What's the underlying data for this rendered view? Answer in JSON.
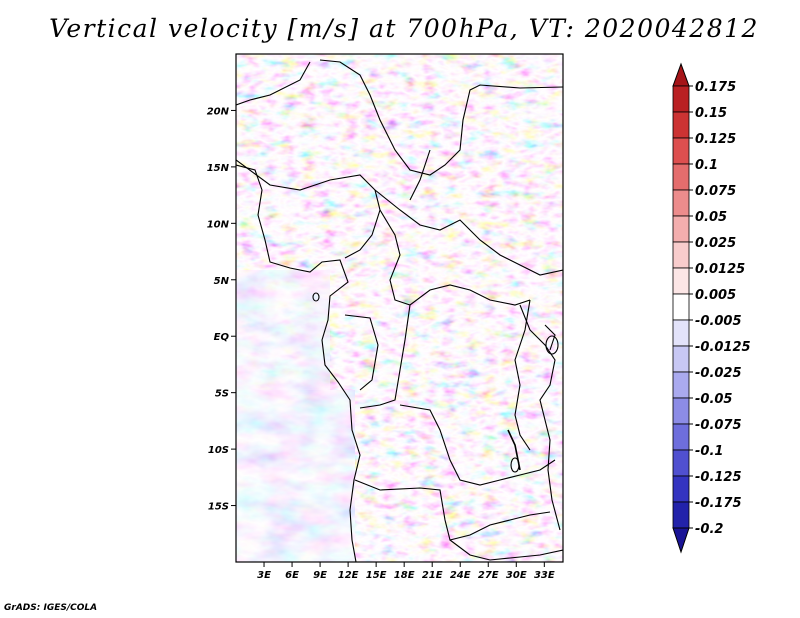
{
  "title": "Vertical velocity [m/s] at 700hPa, VT: 2020042812",
  "credit": "GrADS: IGES/COLA",
  "map": {
    "lon_range": [
      0,
      35
    ],
    "lat_range": [
      -20,
      25
    ],
    "lat_ticks": [
      {
        "lat": 20,
        "label": "20N"
      },
      {
        "lat": 15,
        "label": "15N"
      },
      {
        "lat": 10,
        "label": "10N"
      },
      {
        "lat": 5,
        "label": "5N"
      },
      {
        "lat": 0,
        "label": "EQ"
      },
      {
        "lat": -5,
        "label": "5S"
      },
      {
        "lat": -10,
        "label": "10S"
      },
      {
        "lat": -15,
        "label": "15S"
      }
    ],
    "lon_ticks": [
      {
        "lon": 3,
        "label": "3E"
      },
      {
        "lon": 6,
        "label": "6E"
      },
      {
        "lon": 9,
        "label": "9E"
      },
      {
        "lon": 12,
        "label": "12E"
      },
      {
        "lon": 15,
        "label": "15E"
      },
      {
        "lon": 18,
        "label": "18E"
      },
      {
        "lon": 21,
        "label": "21E"
      },
      {
        "lon": 24,
        "label": "24E"
      },
      {
        "lon": 27,
        "label": "27E"
      },
      {
        "lon": 30,
        "label": "30E"
      },
      {
        "lon": 33,
        "label": "33E"
      }
    ]
  },
  "colorbar": {
    "levels": [
      {
        "label": "0.175",
        "color": "#a51418"
      },
      {
        "label": "0.15",
        "color": "#b92023"
      },
      {
        "label": "0.125",
        "color": "#cc3333"
      },
      {
        "label": "0.1",
        "color": "#dd4f4f"
      },
      {
        "label": "0.075",
        "color": "#e46d6d"
      },
      {
        "label": "0.05",
        "color": "#ec8c8c"
      },
      {
        "label": "0.025",
        "color": "#f3aeae"
      },
      {
        "label": "0.0125",
        "color": "#f8cccc"
      },
      {
        "label": "0.005",
        "color": "#fce6e6"
      },
      {
        "label": "-0.005",
        "color": "#ffffff"
      },
      {
        "label": "-0.0125",
        "color": "#e3e3fa"
      },
      {
        "label": "-0.025",
        "color": "#c8c8f4"
      },
      {
        "label": "-0.05",
        "color": "#aaaaef"
      },
      {
        "label": "-0.075",
        "color": "#8c8ce6"
      },
      {
        "label": "-0.1",
        "color": "#6e6edc"
      },
      {
        "label": "-0.125",
        "color": "#5050d0"
      },
      {
        "label": "-0.175",
        "color": "#3434c0"
      },
      {
        "label": "-0.2",
        "color": "#2222aa"
      }
    ],
    "top_color": "#a51418",
    "bottom_color": "#1a1496"
  }
}
